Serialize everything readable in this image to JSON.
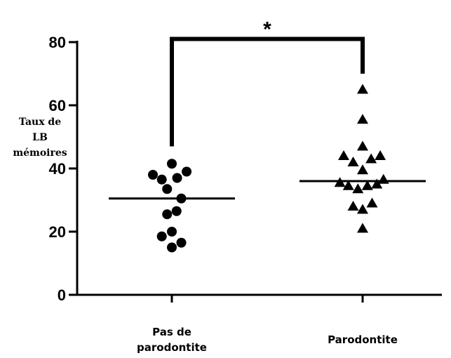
{
  "chart_data": {
    "type": "scatter",
    "ylabel_lines": [
      "Taux de",
      "LB",
      "mémoires"
    ],
    "xlabel": "",
    "ylim": [
      0,
      80
    ],
    "yticks": [
      0,
      20,
      40,
      60,
      80
    ],
    "categories": [
      {
        "label_lines": [
          "Pas de",
          "parodontite"
        ]
      },
      {
        "label_lines": [
          "Parodontite"
        ]
      }
    ],
    "series": [
      {
        "category_index": 0,
        "marker": "circle",
        "mean": 30.5,
        "points": [
          {
            "offset": 0.0,
            "y": 41.5
          },
          {
            "offset": -1.0,
            "y": 38.0
          },
          {
            "offset": 0.78,
            "y": 39.0
          },
          {
            "offset": -0.53,
            "y": 36.5
          },
          {
            "offset": 0.28,
            "y": 37.0
          },
          {
            "offset": -0.25,
            "y": 33.5
          },
          {
            "offset": 0.5,
            "y": 30.5
          },
          {
            "offset": -0.25,
            "y": 25.5
          },
          {
            "offset": 0.25,
            "y": 26.5
          },
          {
            "offset": 0.0,
            "y": 20.0
          },
          {
            "offset": -0.53,
            "y": 18.5
          },
          {
            "offset": 0.5,
            "y": 16.5
          },
          {
            "offset": 0.0,
            "y": 15.0
          }
        ]
      },
      {
        "category_index": 1,
        "marker": "triangle",
        "mean": 36.0,
        "points": [
          {
            "offset": 0.0,
            "y": 65.0
          },
          {
            "offset": 0.0,
            "y": 55.5
          },
          {
            "offset": 0.0,
            "y": 47.0
          },
          {
            "offset": -1.0,
            "y": 44.0
          },
          {
            "offset": 0.93,
            "y": 44.0
          },
          {
            "offset": -0.5,
            "y": 42.0
          },
          {
            "offset": 0.45,
            "y": 43.0
          },
          {
            "offset": 0.0,
            "y": 39.5
          },
          {
            "offset": -1.2,
            "y": 35.5
          },
          {
            "offset": 1.1,
            "y": 36.5
          },
          {
            "offset": -0.75,
            "y": 34.5
          },
          {
            "offset": -0.25,
            "y": 33.5
          },
          {
            "offset": 0.25,
            "y": 34.5
          },
          {
            "offset": 0.75,
            "y": 35.0
          },
          {
            "offset": -0.5,
            "y": 28.0
          },
          {
            "offset": 0.5,
            "y": 29.0
          },
          {
            "offset": 0.0,
            "y": 27.0
          },
          {
            "offset": 0.0,
            "y": 21.0
          }
        ]
      }
    ],
    "significance": {
      "label": "*",
      "from_category": 0,
      "to_category": 1,
      "bracket_y": 81,
      "left_drop_to": 47,
      "right_drop_to": 70
    }
  }
}
